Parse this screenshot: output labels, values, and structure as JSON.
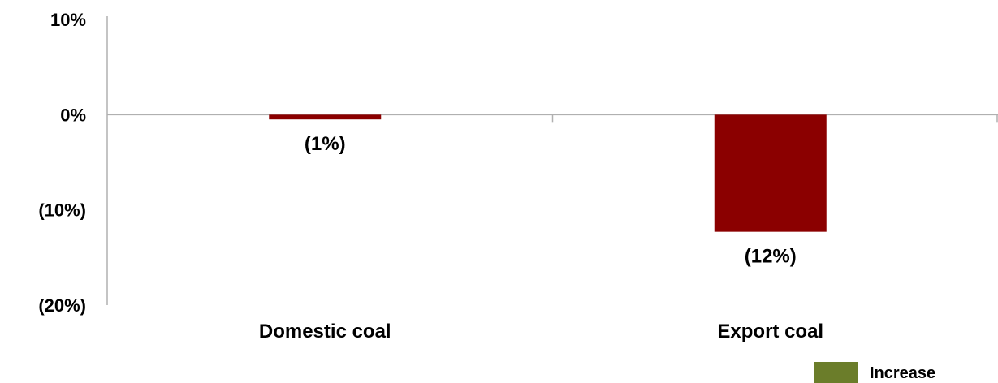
{
  "chart_data": {
    "type": "bar",
    "categories": [
      "Domestic coal",
      "Export coal"
    ],
    "values": [
      -0.5,
      -12.3
    ],
    "data_labels": [
      "(1%)",
      "(12%)"
    ],
    "ylim": [
      -20,
      10
    ],
    "y_ticks": [
      10,
      0,
      -10,
      -20
    ],
    "y_tick_labels": [
      "10%",
      "0%",
      "(10%)",
      "(20%)"
    ],
    "grid": false,
    "legend": {
      "placement": "bottom-right",
      "entries": [
        {
          "label": "Increase",
          "color": "#6b7d2a"
        }
      ]
    },
    "colors": {
      "bar": "#8b0000",
      "axis": "#b0b0b0",
      "increase": "#6b7d2a"
    }
  }
}
